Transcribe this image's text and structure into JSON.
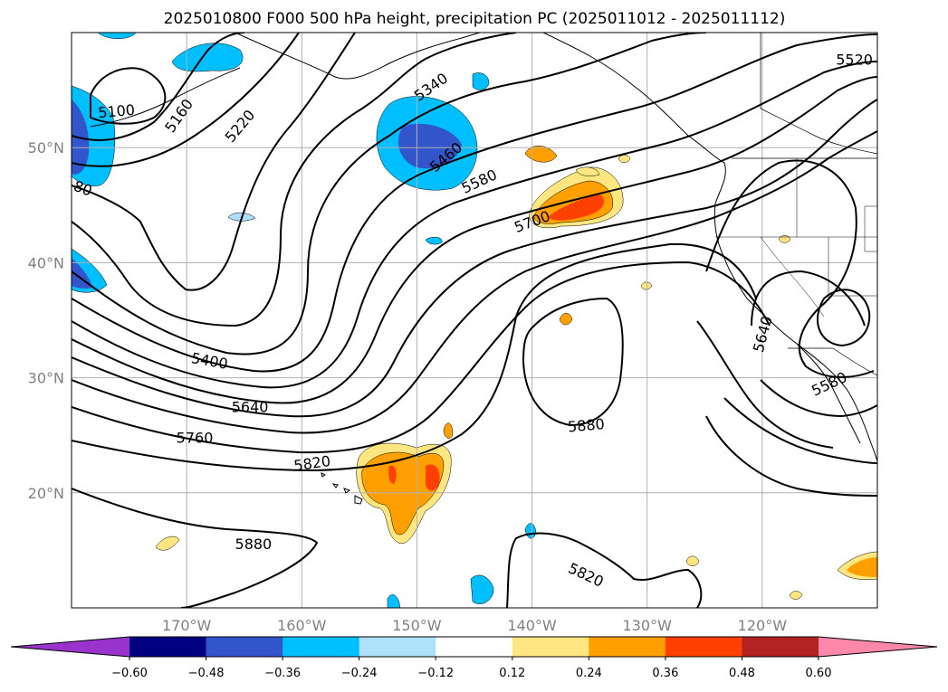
{
  "chart_data": {
    "type": "contour",
    "title": "2025010800 F000 500 hPa height, precipitation PC (2025011012 - 2025011112)",
    "x_ticks": [
      "170°W",
      "160°W",
      "150°W",
      "140°W",
      "130°W",
      "120°W"
    ],
    "x_tick_values": [
      -170,
      -160,
      -150,
      -140,
      -130,
      -120
    ],
    "y_ticks": [
      "50°N",
      "40°N",
      "30°N",
      "20°N"
    ],
    "y_tick_values": [
      50,
      40,
      30,
      20
    ],
    "xlim": [
      -180,
      -110
    ],
    "ylim": [
      10,
      60
    ],
    "grid": true,
    "colorbar": {
      "orientation": "horizontal",
      "extend": "both",
      "colors": [
        "#9933cc",
        "#000080",
        "#3355cc",
        "#00bfff",
        "#ade0fa",
        "#ffffff",
        "#ffe680",
        "#ffa000",
        "#ff4000",
        "#b22222",
        "#ff88aa"
      ],
      "boundaries": [
        -0.72,
        -0.6,
        -0.48,
        -0.36,
        -0.24,
        -0.12,
        0.12,
        0.24,
        0.36,
        0.48,
        0.6,
        0.72
      ],
      "tick_labels": [
        "−0.60",
        "−0.48",
        "−0.36",
        "−0.24",
        "−0.12",
        "0.12",
        "0.24",
        "0.36",
        "0.48",
        "0.60"
      ]
    },
    "contour_labels": [
      {
        "text": "5100",
        "rot": -5,
        "x": -176.1,
        "y": 53.2
      },
      {
        "text": "5160",
        "rot": -55,
        "x": -170.7,
        "y": 52.8
      },
      {
        "text": "5220",
        "rot": -50,
        "x": -165.4,
        "y": 51.9
      },
      {
        "text": "80",
        "rot": 20,
        "x": -179.0,
        "y": 46.5
      },
      {
        "text": "5340",
        "rot": -35,
        "x": -148.8,
        "y": 55.3
      },
      {
        "text": "5460",
        "rot": -40,
        "x": -147.5,
        "y": 49.2
      },
      {
        "text": "5580",
        "rot": -25,
        "x": -144.6,
        "y": 47.1
      },
      {
        "text": "5700",
        "rot": -20,
        "x": -140.0,
        "y": 43.6
      },
      {
        "text": "5520",
        "rot": 0,
        "x": -112.0,
        "y": 57.7
      },
      {
        "text": "5400",
        "rot": 10,
        "x": -168.0,
        "y": 31.5
      },
      {
        "text": "5640",
        "rot": 0,
        "x": -164.5,
        "y": 27.5
      },
      {
        "text": "5760",
        "rot": 0,
        "x": -169.3,
        "y": 24.8
      },
      {
        "text": "5820",
        "rot": -8,
        "x": -159.1,
        "y": 22.6
      },
      {
        "text": "5880",
        "rot": 0,
        "x": -164.2,
        "y": 15.6
      },
      {
        "text": "5880",
        "rot": -5,
        "x": -135.3,
        "y": 25.9
      },
      {
        "text": "5820",
        "rot": 25,
        "x": -135.3,
        "y": 12.9
      },
      {
        "text": "5640",
        "rot": -75,
        "x": -120.0,
        "y": 33.8
      },
      {
        "text": "5580",
        "rot": -25,
        "x": -114.2,
        "y": 29.5
      }
    ]
  }
}
